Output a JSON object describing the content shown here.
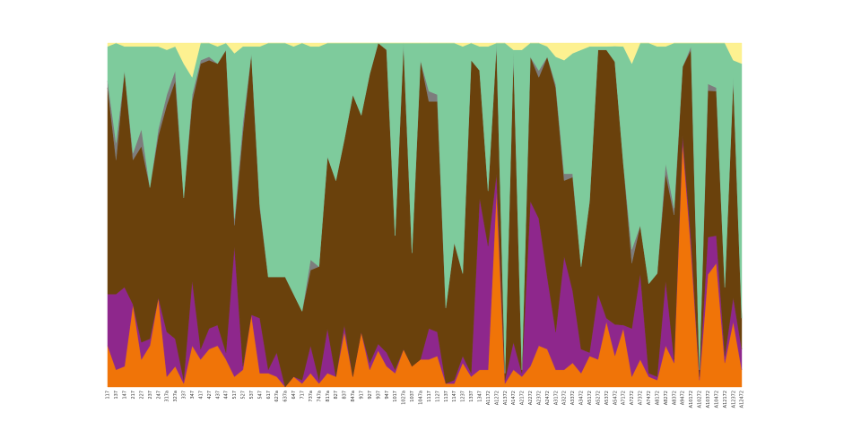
{
  "chart_data": {
    "type": "area",
    "stacked": true,
    "normalized": true,
    "title": "",
    "xlabel": "",
    "ylabel": "",
    "ylim": [
      0,
      1
    ],
    "grid": false,
    "legend": "none",
    "categories": [
      "117",
      "137",
      "147",
      "217",
      "227",
      "237",
      "247",
      "317a",
      "327a",
      "337",
      "347",
      "417",
      "427",
      "437",
      "447",
      "517",
      "527",
      "537",
      "547",
      "617",
      "627a",
      "637a",
      "647",
      "717",
      "737a",
      "747a",
      "817a",
      "827",
      "837",
      "847a",
      "917",
      "927",
      "937",
      "947",
      "1017",
      "1027a",
      "1037",
      "1047a",
      "1117",
      "1127",
      "1137",
      "1147",
      "1237",
      "1337",
      "1347",
      "A1172",
      "A1272",
      "A1372",
      "A1472",
      "A2172",
      "A2272",
      "A2372",
      "A2472",
      "A3172",
      "A3272",
      "A3372",
      "A3472",
      "A5172",
      "A5272",
      "A5372",
      "A5472",
      "A7172",
      "A7272",
      "A7372",
      "A7472",
      "A8172",
      "A8272",
      "A8372",
      "A9472",
      "A10172",
      "A10272",
      "A10372",
      "A10472",
      "A12172",
      "A12372",
      "A12472"
    ],
    "series": [
      {
        "color": "#f07408",
        "values": [
          0.12,
          0.05,
          0.06,
          0.24,
          0.08,
          0.12,
          0.26,
          0.03,
          0.06,
          0.01,
          0.12,
          0.08,
          0.11,
          0.12,
          0.08,
          0.03,
          0.05,
          0.21,
          0.04,
          0.04,
          0.03,
          0.0,
          0.03,
          0.01,
          0.04,
          0.01,
          0.04,
          0.03,
          0.16,
          0.03,
          0.16,
          0.05,
          0.11,
          0.06,
          0.04,
          0.11,
          0.06,
          0.08,
          0.08,
          0.09,
          0.01,
          0.01,
          0.07,
          0.03,
          0.05,
          0.05,
          0.57,
          0.01,
          0.05,
          0.03,
          0.06,
          0.12,
          0.11,
          0.05,
          0.05,
          0.07,
          0.04,
          0.09,
          0.08,
          0.19,
          0.1,
          0.17,
          0.03,
          0.08,
          0.03,
          0.02,
          0.12,
          0.07,
          0.72,
          0.4,
          0.02,
          0.33,
          0.36,
          0.07,
          0.19,
          0.05
        ]
      },
      {
        "color": "#8e278c",
        "values": [
          0.15,
          0.22,
          0.23,
          0.0,
          0.05,
          0.02,
          0.0,
          0.13,
          0.08,
          0.01,
          0.19,
          0.03,
          0.06,
          0.06,
          0.02,
          0.38,
          0.01,
          0.0,
          0.16,
          0.01,
          0.07,
          0.0,
          0.0,
          0.01,
          0.08,
          0.01,
          0.13,
          0.0,
          0.02,
          0.0,
          0.0,
          0.02,
          0.02,
          0.04,
          0.01,
          0.0,
          0.0,
          0.0,
          0.09,
          0.07,
          0.0,
          0.01,
          0.02,
          0.01,
          0.5,
          0.36,
          0.05,
          0.01,
          0.08,
          0.01,
          0.48,
          0.37,
          0.21,
          0.11,
          0.33,
          0.21,
          0.07,
          0.01,
          0.19,
          0.01,
          0.1,
          0.01,
          0.14,
          0.25,
          0.01,
          0.01,
          0.19,
          0.01,
          0.02,
          0.03,
          0.01,
          0.11,
          0.08,
          0.02,
          0.07,
          0.06
        ]
      },
      {
        "color": "#6a410c",
        "values": [
          0.6,
          0.39,
          0.63,
          0.42,
          0.57,
          0.44,
          0.47,
          0.66,
          0.75,
          0.53,
          0.52,
          0.83,
          0.78,
          0.76,
          0.88,
          0.06,
          0.68,
          0.76,
          0.32,
          0.27,
          0.22,
          0.32,
          0.24,
          0.2,
          0.22,
          0.33,
          0.5,
          0.57,
          0.54,
          0.82,
          0.63,
          0.84,
          0.91,
          0.88,
          0.39,
          0.89,
          0.33,
          0.87,
          0.66,
          0.67,
          0.22,
          0.4,
          0.24,
          0.91,
          0.37,
          0.16,
          0.38,
          0.02,
          0.84,
          0.01,
          0.42,
          0.41,
          0.64,
          0.71,
          0.22,
          0.33,
          0.24,
          0.44,
          0.71,
          0.78,
          0.84,
          0.47,
          0.19,
          0.14,
          0.26,
          0.3,
          0.31,
          0.42,
          0.2,
          0.55,
          0.02,
          0.43,
          0.42,
          0.2,
          0.64,
          0.09
        ]
      },
      {
        "color": "#7d7d7d",
        "values": [
          0.02,
          0.05,
          0.0,
          0.02,
          0.05,
          0.0,
          0.02,
          0.03,
          0.03,
          0.0,
          0.02,
          0.01,
          0.01,
          0.0,
          0.0,
          0.02,
          0.03,
          0.0,
          0.01,
          0.0,
          0.0,
          0.0,
          0.0,
          0.0,
          0.03,
          0.0,
          0.0,
          0.0,
          0.0,
          0.0,
          0.0,
          0.0,
          0.0,
          0.0,
          0.0,
          0.0,
          0.0,
          0.0,
          0.03,
          0.02,
          0.0,
          0.0,
          0.0,
          0.0,
          0.0,
          0.0,
          0.0,
          0.0,
          0.0,
          0.0,
          0.0,
          0.02,
          0.0,
          0.01,
          0.02,
          0.01,
          0.0,
          0.0,
          0.0,
          0.0,
          0.0,
          0.0,
          0.04,
          0.0,
          0.0,
          0.0,
          0.03,
          0.02,
          0.0,
          0.01,
          0.0,
          0.02,
          0.01,
          0.0,
          0.0,
          0.0
        ]
      },
      {
        "color": "#7ecb9c",
        "values": [
          0.1,
          0.29,
          0.07,
          0.31,
          0.24,
          0.41,
          0.24,
          0.13,
          0.07,
          0.39,
          0.05,
          0.05,
          0.04,
          0.05,
          0.02,
          0.48,
          0.22,
          0.02,
          0.46,
          0.68,
          0.68,
          0.68,
          0.72,
          0.78,
          0.62,
          0.64,
          0.33,
          0.4,
          0.28,
          0.15,
          0.21,
          0.09,
          0.0,
          0.02,
          0.56,
          0.0,
          0.61,
          0.05,
          0.14,
          0.15,
          0.77,
          0.58,
          0.66,
          0.05,
          0.07,
          0.42,
          0.0,
          0.96,
          0.01,
          0.93,
          0.04,
          0.08,
          0.03,
          0.08,
          0.33,
          0.35,
          0.63,
          0.45,
          0.01,
          0.01,
          0.05,
          0.34,
          0.54,
          0.53,
          0.7,
          0.66,
          0.34,
          0.48,
          0.07,
          0.01,
          0.95,
          0.12,
          0.13,
          0.71,
          0.05,
          0.74
        ]
      },
      {
        "color": "#fdf191",
        "values": [
          0.01,
          0.0,
          0.01,
          0.01,
          0.01,
          0.01,
          0.01,
          0.02,
          0.01,
          0.06,
          0.1,
          0.0,
          0.0,
          0.01,
          0.0,
          0.03,
          0.01,
          0.01,
          0.01,
          0.0,
          0.0,
          0.0,
          0.01,
          0.0,
          0.01,
          0.01,
          0.0,
          0.0,
          0.0,
          0.0,
          0.0,
          0.0,
          0.0,
          0.0,
          0.0,
          0.0,
          0.0,
          0.0,
          0.0,
          0.0,
          0.0,
          0.0,
          0.01,
          0.0,
          0.01,
          0.01,
          0.0,
          0.0,
          0.02,
          0.02,
          0.0,
          0.0,
          0.01,
          0.04,
          0.05,
          0.03,
          0.02,
          0.01,
          0.01,
          0.01,
          0.01,
          0.01,
          0.06,
          0.0,
          0.0,
          0.01,
          0.01,
          0.0,
          0.0,
          0.0,
          0.0,
          0.0,
          0.0,
          0.0,
          0.05,
          0.06
        ]
      }
    ]
  }
}
